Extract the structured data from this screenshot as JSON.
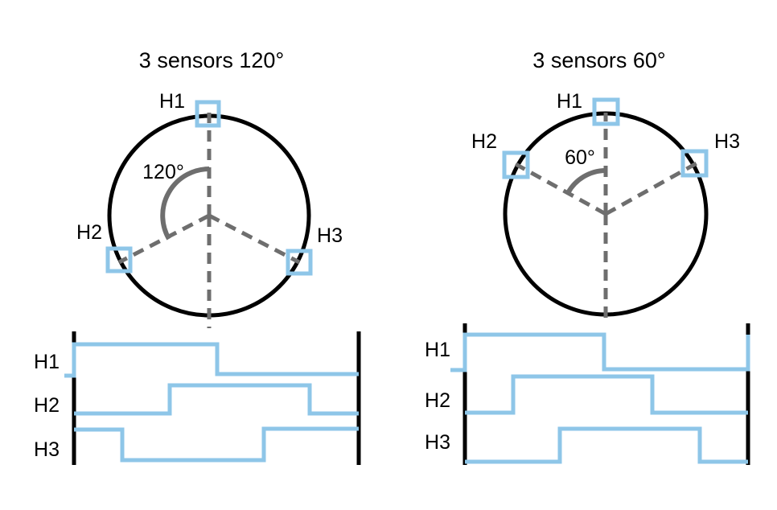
{
  "colors": {
    "sensor": "#8ec6e8",
    "signal": "#8ec6e8",
    "circle": "#000000",
    "guide": "#6e6e6e",
    "bar": "#000000"
  },
  "left": {
    "title": "3 sensors 120°",
    "angle_label": "120°",
    "sensor_labels": [
      "H1",
      "H2",
      "H3"
    ],
    "wave_labels": [
      "H1",
      "H2",
      "H3"
    ]
  },
  "right": {
    "title": "3 sensors 60°",
    "angle_label": "60°",
    "sensor_labels": [
      "H1",
      "H2",
      "H3"
    ],
    "wave_labels": [
      "H1",
      "H2",
      "H3"
    ]
  }
}
